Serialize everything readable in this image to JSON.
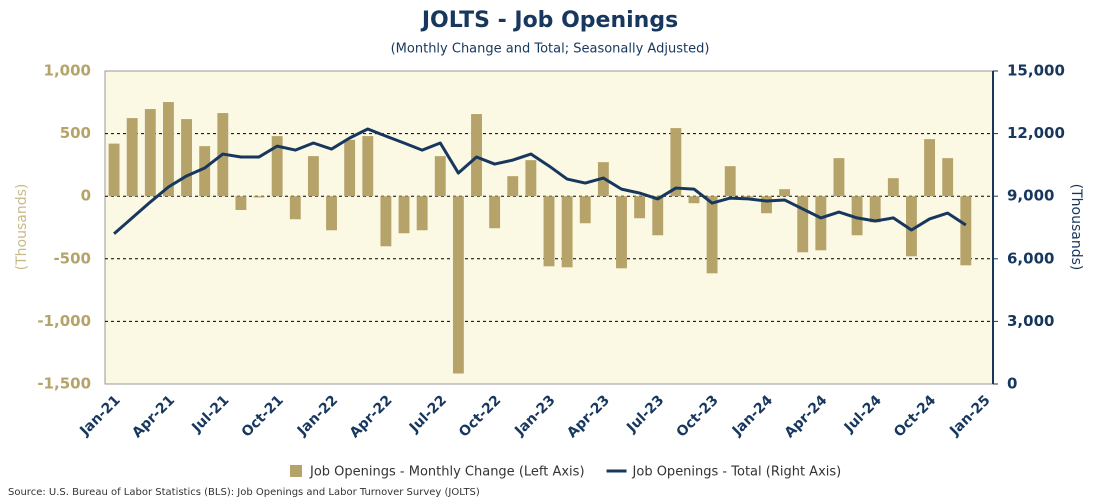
{
  "chart_data": {
    "type": "bar_line",
    "title": "JOLTS - Job Openings",
    "subtitle": "(Monthly Change and Total; Seasonally Adjusted)",
    "ylabel": "(Thousands)",
    "y2label": "(Thousands)",
    "source": "Source: U.S. Bureau of Labor Statistics (BLS): Job Openings and Labor Turnover Survey (JOLTS)",
    "categories": [
      "Jan-21",
      null,
      null,
      "Apr-21",
      null,
      null,
      "Jul-21",
      null,
      null,
      "Oct-21",
      null,
      null,
      "Jan-22",
      null,
      null,
      "Apr-22",
      null,
      null,
      "Jul-22",
      null,
      null,
      "Oct-22",
      null,
      null,
      "Jan-23",
      null,
      null,
      "Apr-23",
      null,
      null,
      "Jul-23",
      null,
      null,
      "Oct-23",
      null,
      null,
      "Jan-24",
      null,
      null,
      "Apr-24",
      null,
      null,
      "Jul-24",
      null,
      null,
      "Oct-24",
      null,
      null,
      "Jan-25"
    ],
    "series": [
      {
        "name": "Job Openings - Monthly Change (Left Axis)",
        "type": "bar",
        "color": "#b5a36a",
        "axis": "y",
        "values": [
          420,
          624,
          696,
          752,
          616,
          400,
          664,
          -110,
          -10,
          480,
          -184,
          320,
          -272,
          450,
          480,
          -400,
          -296,
          -272,
          320,
          -1416,
          656,
          -256,
          160,
          288,
          -560,
          -568,
          -216,
          272,
          -576,
          -176,
          -312,
          544,
          -56,
          -616,
          240,
          -10,
          -136,
          56,
          -448,
          -432,
          304,
          -312,
          -208,
          144,
          -480,
          456,
          304,
          -552,
          null
        ]
      },
      {
        "name": "Job Openings - Total (Right Axis)",
        "type": "line",
        "color": "#17375e",
        "axis": "y2",
        "values": [
          7200,
          7960,
          8720,
          9440,
          9970,
          10350,
          11020,
          10880,
          10880,
          11400,
          11210,
          11550,
          11260,
          11790,
          12220,
          11880,
          11550,
          11210,
          11550,
          10110,
          10880,
          10540,
          10730,
          11020,
          10450,
          9820,
          9630,
          9870,
          9340,
          9150,
          8870,
          9390,
          9340,
          8670,
          8910,
          8870,
          8770,
          8820,
          8390,
          7960,
          8240,
          7960,
          7810,
          7960,
          7380,
          7910,
          8190,
          7620,
          null
        ]
      }
    ],
    "ylim": [
      -1500,
      1000
    ],
    "yticks": [
      {
        "value": -1500,
        "label": "-1,500"
      },
      {
        "value": -1000,
        "label": "-1,000"
      },
      -500,
      0,
      500,
      {
        "value": 1000,
        "label": "1,000"
      }
    ],
    "y2lim": [
      0,
      15000
    ],
    "y2ticks": [
      0,
      {
        "value": 3000,
        "label": "3,000"
      },
      {
        "value": 6000,
        "label": "6,000"
      },
      {
        "value": 9000,
        "label": "9,000"
      },
      {
        "value": 12000,
        "label": "12,000"
      },
      {
        "value": 15000,
        "label": "15,000"
      }
    ],
    "grid": true,
    "legend": "bottom"
  }
}
